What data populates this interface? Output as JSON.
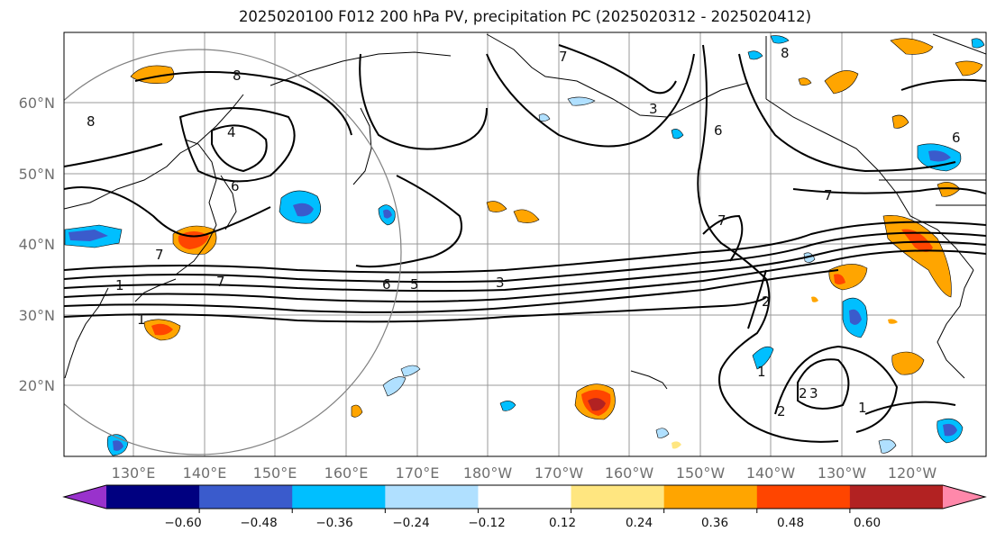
{
  "title": "2025020100 F012 200 hPa PV, precipitation PC (2025020312 - 2025020412)",
  "lat_labels": [
    "60°N",
    "50°N",
    "40°N",
    "30°N",
    "20°N"
  ],
  "lon_labels": [
    "130°E",
    "140°E",
    "150°E",
    "160°E",
    "170°E",
    "180°W",
    "170°W",
    "160°W",
    "150°W",
    "140°W",
    "130°W",
    "120°W"
  ],
  "contour_labels": [
    "8",
    "8",
    "4",
    "6",
    "8",
    "7",
    "7",
    "7",
    "3",
    "6",
    "7",
    "6",
    "5",
    "3",
    "1",
    "1",
    "2",
    "1",
    "2",
    "2",
    "3",
    "1",
    "7",
    "6"
  ],
  "colorbar": {
    "ticks": [
      "−0.60",
      "−0.48",
      "−0.36",
      "−0.24",
      "−0.12",
      "0.12",
      "0.24",
      "0.36",
      "0.48",
      "0.60"
    ],
    "colors": [
      "#9932cc",
      "#000080",
      "#3a5bcc",
      "#00bfff",
      "#b0e0ff",
      "#ffffff",
      "#ffe680",
      "#ffa500",
      "#ff4500",
      "#b22222",
      "#ff88aa"
    ]
  }
}
